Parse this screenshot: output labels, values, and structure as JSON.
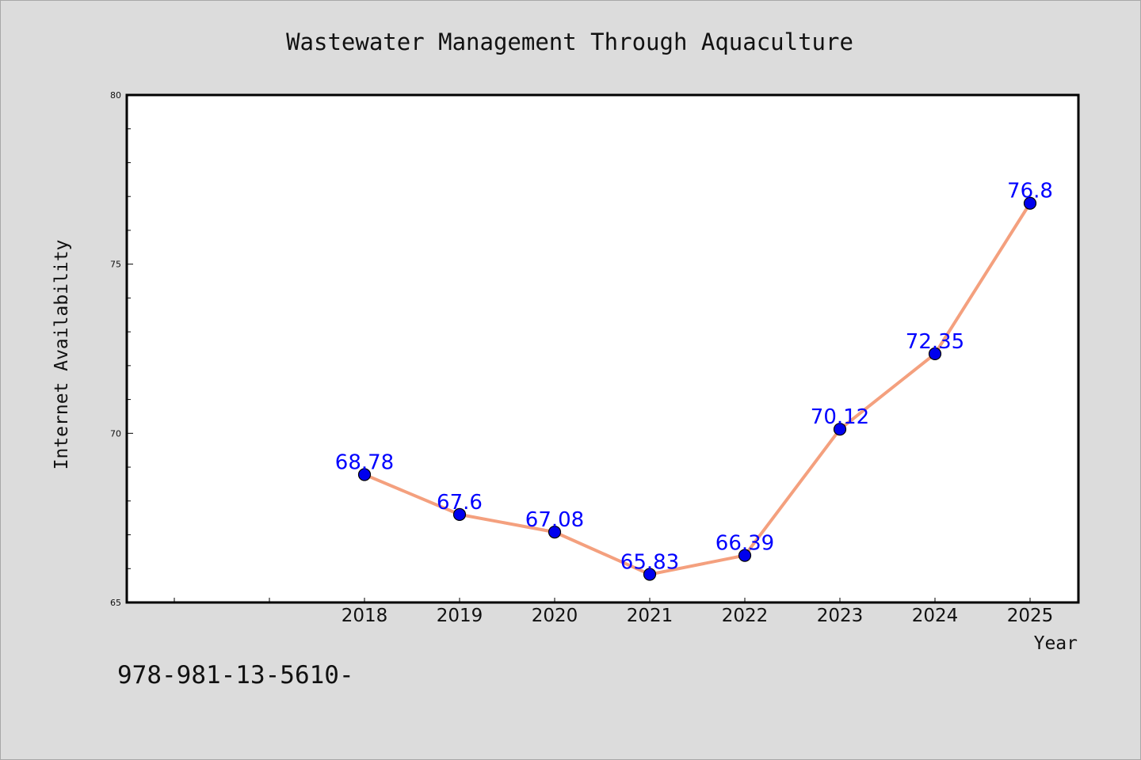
{
  "chart_data": {
    "type": "line",
    "title": "Wastewater Management Through Aquaculture",
    "xlabel": "Year",
    "ylabel": "Internet Availability",
    "x": [
      "2018",
      "2019",
      "2020",
      "2021",
      "2022",
      "2023",
      "2024",
      "2025"
    ],
    "series": [
      {
        "values": [
          68.78,
          67.6,
          67.08,
          65.83,
          66.39,
          70.12,
          72.35,
          76.8
        ],
        "data_labels": [
          "68.78",
          "67.6",
          "67.08",
          "65.83",
          "66.39",
          "70.12",
          "72.35",
          "76.8"
        ],
        "line_color": "#f4a07e",
        "marker_color": "#0000ee",
        "label_color": "#0000ff"
      }
    ],
    "ylim": [
      65,
      80
    ],
    "yticks": [
      "65",
      "70",
      "75",
      "80"
    ],
    "grid": false,
    "legend": "none"
  },
  "caption": "978-981-13-5610-"
}
